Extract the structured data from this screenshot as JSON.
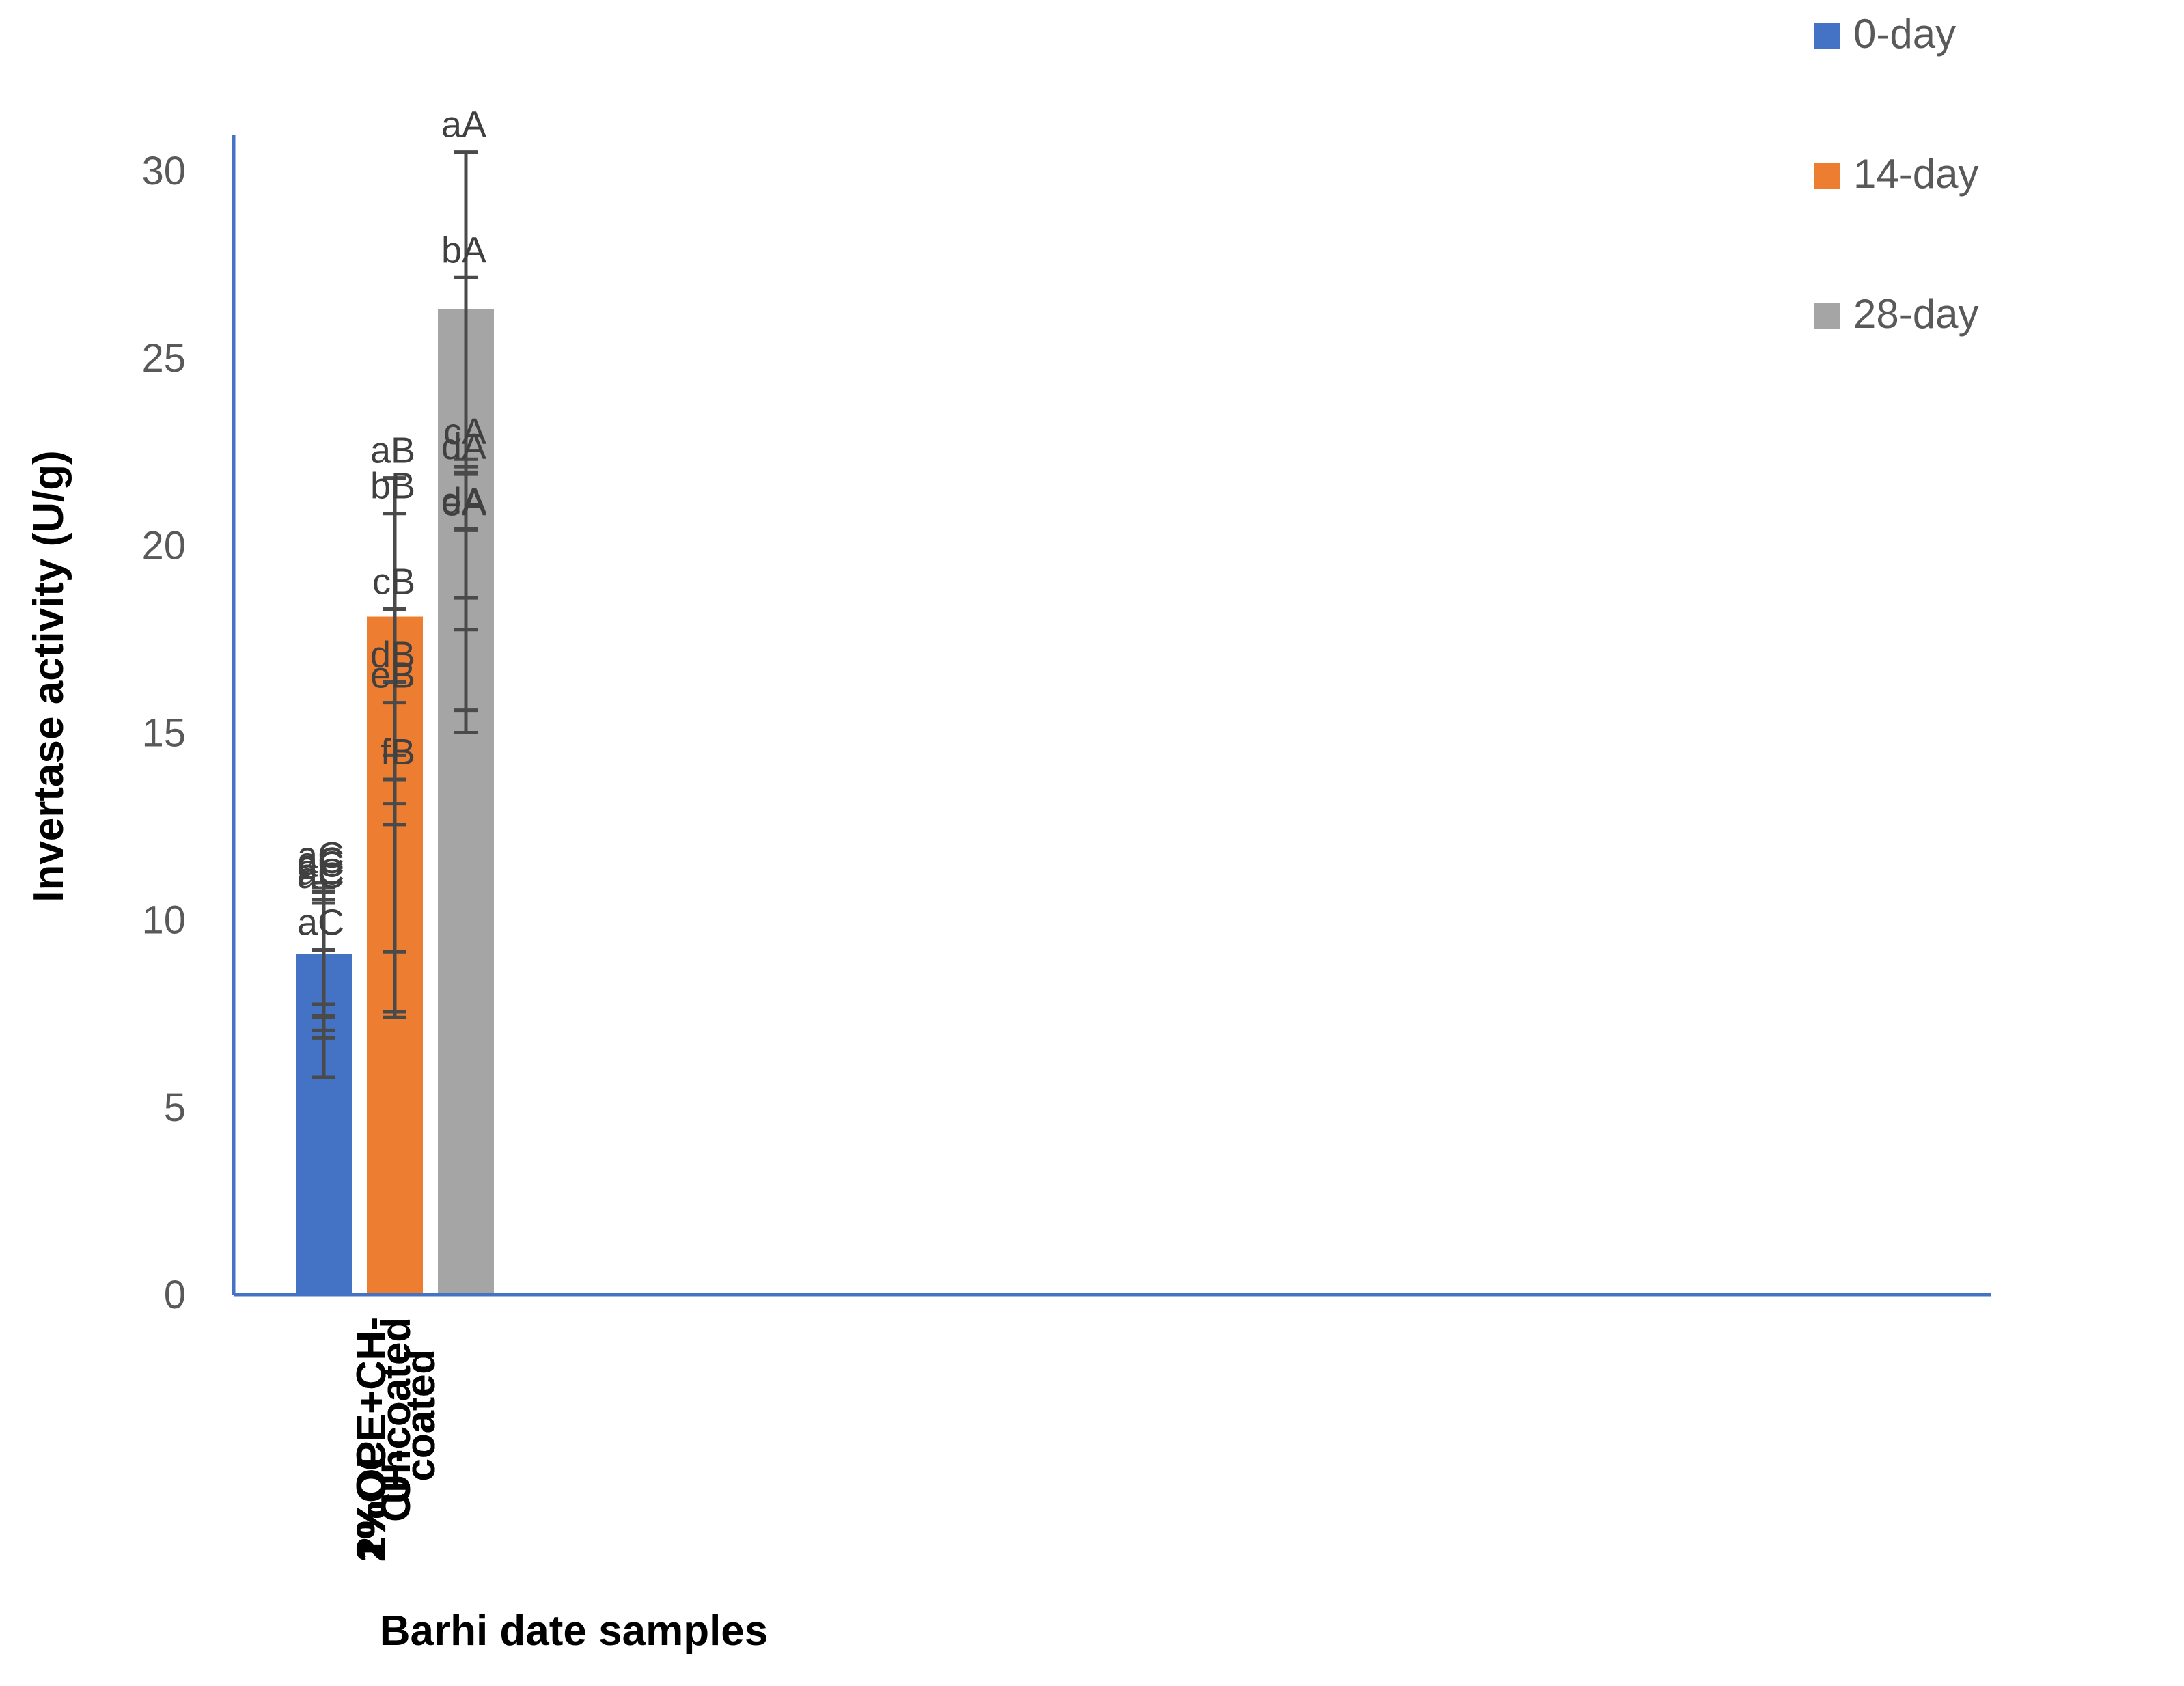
{
  "chart_data": {
    "type": "bar",
    "title": "",
    "xlabel": "Barhi date samples",
    "ylabel": "Invertase activity (U/g)",
    "ylim": [
      0,
      30
    ],
    "yticks": [
      "0",
      "5",
      "10",
      "15",
      "20",
      "25",
      "30"
    ],
    "grid": false,
    "legend_position": "top-right",
    "categories": [
      [
        "Uncoated"
      ],
      [
        "CH-coated"
      ],
      [
        "1%OCE+CH-",
        "coated"
      ],
      [
        "2%OCE+CH-",
        "coated"
      ],
      [
        "1%OPE+CH-",
        "coated"
      ],
      [
        "2%OPE+CH-",
        "coated"
      ]
    ],
    "series": [
      {
        "name": "0-day",
        "color": "#4472C4",
        "values": [
          8.7,
          8.4,
          9.1,
          8.95,
          8.3,
          9.1
        ],
        "errors": [
          1.85,
          2.6,
          1.65,
          1.9,
          0.9,
          1.35
        ],
        "labels": [
          "aC",
          "aC",
          "aC",
          "aC",
          "aC",
          "aC"
        ]
      },
      {
        "name": "14-day",
        "color": "#ED7D31",
        "values": [
          18.1,
          16.7,
          12.75,
          11.6,
          15.7,
          10.65
        ],
        "errors": [
          3.7,
          4.15,
          3.6,
          4.2,
          2.6,
          3.1
        ],
        "labels": [
          "aB",
          "bB",
          "dB",
          "eB",
          "cB",
          "fB"
        ]
      },
      {
        "name": "28-day",
        "color": "#A5A5A5",
        "values": [
          26.3,
          24.55,
          20.45,
          18.0,
          18.45,
          19.1
        ],
        "errors": [
          4.2,
          2.6,
          1.85,
          2.4,
          3.45,
          1.35
        ],
        "labels": [
          "aA",
          "bA",
          "cA",
          "eA",
          "dA",
          "dA"
        ]
      }
    ]
  }
}
